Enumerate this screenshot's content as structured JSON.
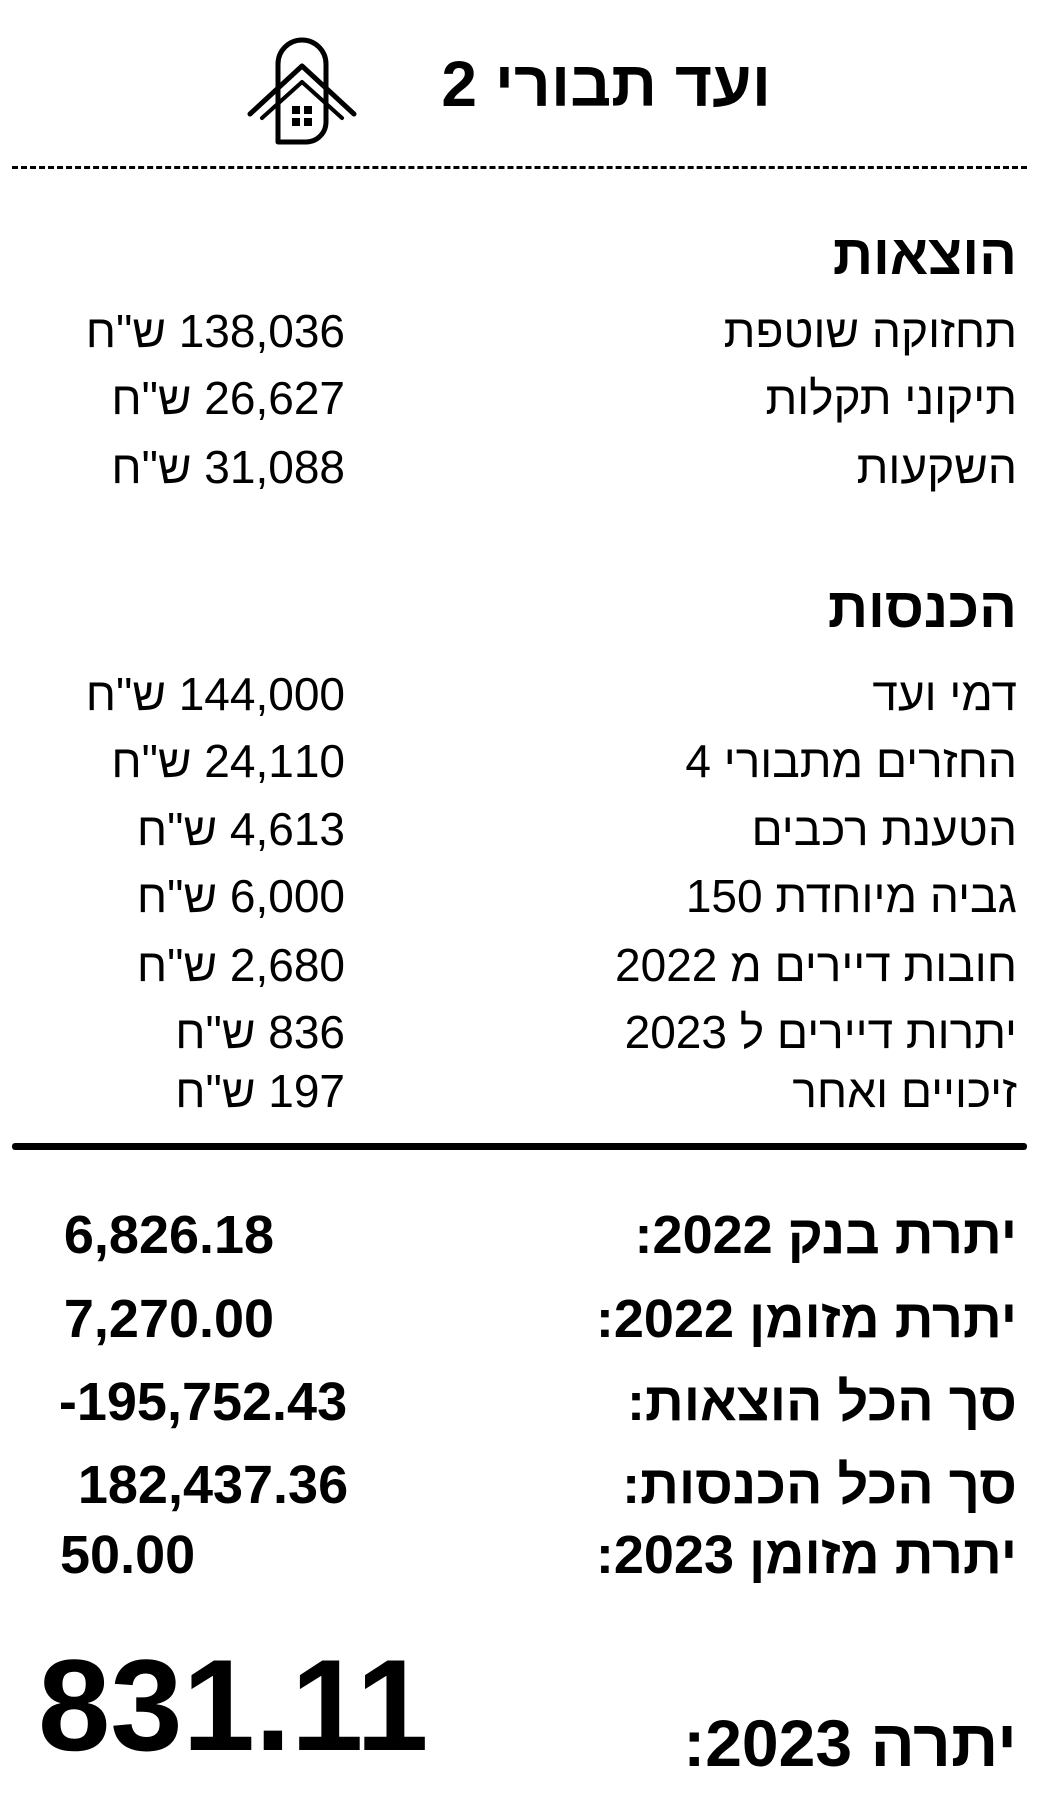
{
  "header": {
    "title": "ועד תבורי 2",
    "logo_icon": "house-in-arch-icon"
  },
  "expenses": {
    "heading": "הוצאות",
    "items": [
      {
        "label": "תחזוקה שוטפת",
        "amount": "138,036 ש\"ח"
      },
      {
        "label": "תיקוני תקלות",
        "amount": "26,627 ש\"ח"
      },
      {
        "label": "השקעות",
        "amount": "31,088 ש\"ח"
      }
    ]
  },
  "income": {
    "heading": "הכנסות",
    "items": [
      {
        "label": "דמי ועד",
        "amount": "144,000 ש\"ח"
      },
      {
        "label": "החזרים מתבורי 4",
        "amount": "24,110 ש\"ח"
      },
      {
        "label": "הטענת רכבים",
        "amount": "4,613 ש\"ח"
      },
      {
        "label": "גביה מיוחדת 150",
        "amount": "6,000 ש\"ח"
      },
      {
        "label": "חובות דיירים מ 2022",
        "amount": "2,680 ש\"ח"
      },
      {
        "label": "יתרות דיירים ל 2023",
        "amount": "836 ש\"ח"
      },
      {
        "label": "זיכויים ואחר",
        "amount": "197 ש\"ח"
      }
    ]
  },
  "summary": [
    {
      "label": "יתרת בנק 2022:",
      "value": "6,826.18"
    },
    {
      "label": "יתרת מזומן 2022:",
      "value": "7,270.00"
    },
    {
      "label": "סך הכל הוצאות:",
      "value": "-195,752.43"
    },
    {
      "label": "סך הכל הכנסות:",
      "value": "182,437.36"
    },
    {
      "label": "יתרת מזומן 2023:",
      "value": "50.00"
    }
  ],
  "final": {
    "label": "יתרה 2023:",
    "value": "831.11"
  }
}
